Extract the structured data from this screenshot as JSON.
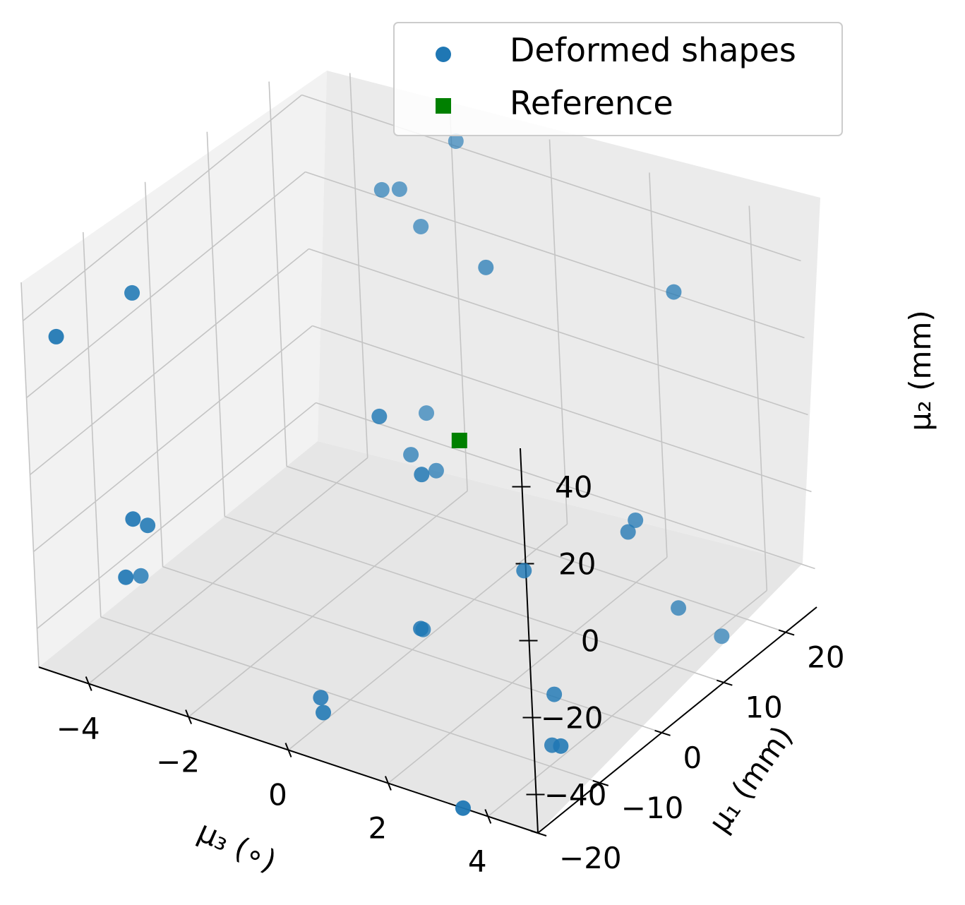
{
  "chart_data": {
    "type": "scatter",
    "title": "",
    "xlabel": "μ₃ (∘)",
    "ylabel": "μ₁ (mm)",
    "zlabel": "μ₂ (mm)",
    "xlim": [
      -5,
      5
    ],
    "ylim": [
      -20,
      25
    ],
    "zlim": [
      -50,
      50
    ],
    "x_ticks": [
      "−4",
      "−2",
      "0",
      "2",
      "4"
    ],
    "y_ticks": [
      "−20",
      "−10",
      "0",
      "10",
      "20"
    ],
    "z_ticks": [
      "−40",
      "−20",
      "0",
      "20",
      "40"
    ],
    "grid": true,
    "legend_position": "top-right",
    "colors": {
      "deformed": "#1f77b4",
      "reference": "#008000"
    },
    "series": [
      {
        "name": "Deformed shapes",
        "marker": "circle",
        "points": [
          {
            "x": -4.6,
            "y": -18,
            "z": 35
          },
          {
            "x": -3.8,
            "y": -12,
            "z": 42
          },
          {
            "x": -3.6,
            "y": -15,
            "z": -12
          },
          {
            "x": -3.7,
            "y": -12,
            "z": -18
          },
          {
            "x": -3.8,
            "y": -15,
            "z": -28
          },
          {
            "x": -4.8,
            "y": -5,
            "z": -45
          },
          {
            "x": -0.6,
            "y": 15,
            "z": 60
          },
          {
            "x": -1.5,
            "y": 10,
            "z": 50
          },
          {
            "x": -1.4,
            "y": 12,
            "z": 48
          },
          {
            "x": -1.0,
            "y": 12,
            "z": 40
          },
          {
            "x": 1.2,
            "y": 5,
            "z": 48
          },
          {
            "x": 0.2,
            "y": -5,
            "z": 18
          },
          {
            "x": 1.4,
            "y": -8,
            "z": 12
          },
          {
            "x": -0.8,
            "y": 10,
            "z": -5
          },
          {
            "x": -0.5,
            "y": 5,
            "z": -8
          },
          {
            "x": 0.0,
            "y": 5,
            "z": -10
          },
          {
            "x": 5.0,
            "y": 5,
            "z": 58
          },
          {
            "x": 4.5,
            "y": 0,
            "z": 0
          },
          {
            "x": 4.4,
            "y": 2,
            "z": 0
          },
          {
            "x": 3.0,
            "y": -5,
            "z": -10
          },
          {
            "x": 4.8,
            "y": 5,
            "z": -25
          },
          {
            "x": 5.0,
            "y": 10,
            "z": -38
          },
          {
            "x": 1.5,
            "y": -10,
            "z": -25
          },
          {
            "x": 3.5,
            "y": -5,
            "z": -40
          },
          {
            "x": 0.5,
            "y": -2,
            "z": -40
          },
          {
            "x": 4.5,
            "y": -12,
            "z": -40
          },
          {
            "x": 3.8,
            "y": -8,
            "z": -48
          },
          {
            "x": -0.6,
            "y": -10,
            "z": -52
          },
          {
            "x": -0.3,
            "y": -12,
            "z": -52
          },
          {
            "x": 3.5,
            "y": -20,
            "z": -50
          }
        ]
      },
      {
        "name": "Reference",
        "marker": "square",
        "points": [
          {
            "x": 0.5,
            "y": 5,
            "z": 0
          }
        ]
      }
    ]
  }
}
